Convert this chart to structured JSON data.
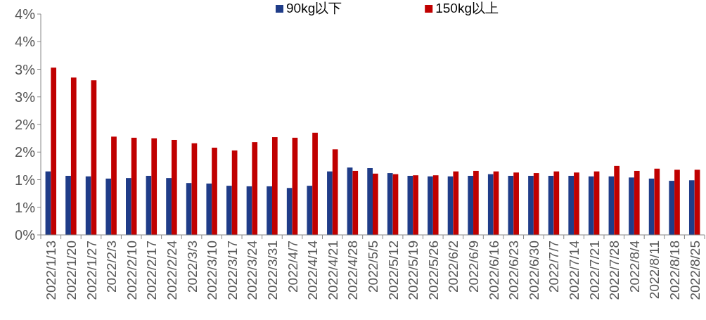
{
  "chart_data": {
    "type": "bar",
    "legend": "top",
    "grid": false,
    "categories": [
      "2022/1/13",
      "2022/1/20",
      "2022/1/27",
      "2022/2/3",
      "2022/2/10",
      "2022/2/17",
      "2022/2/24",
      "2022/3/3",
      "2022/3/10",
      "2022/3/17",
      "2022/3/24",
      "2022/3/31",
      "2022/4/7",
      "2022/4/14",
      "2022/4/21",
      "2022/4/28",
      "2022/5/5",
      "2022/5/12",
      "2022/5/19",
      "2022/5/26",
      "2022/6/2",
      "2022/6/9",
      "2022/6/16",
      "2022/6/23",
      "2022/6/30",
      "2022/7/7",
      "2022/7/14",
      "2022/7/21",
      "2022/7/28",
      "2022/8/4",
      "2022/8/11",
      "2022/8/18",
      "2022/8/25"
    ],
    "series": [
      {
        "name": "90kg以下",
        "color": "#1f3c88",
        "values": [
          1.15,
          1.07,
          1.06,
          1.02,
          1.03,
          1.07,
          1.03,
          0.94,
          0.93,
          0.89,
          0.88,
          0.88,
          0.85,
          0.89,
          1.15,
          1.22,
          1.21,
          1.12,
          1.07,
          1.06,
          1.06,
          1.07,
          1.1,
          1.07,
          1.07,
          1.07,
          1.07,
          1.06,
          1.06,
          1.04,
          1.02,
          0.98,
          0.99
        ]
      },
      {
        "name": "150kg以上",
        "color": "#c00000",
        "values": [
          3.03,
          2.85,
          2.8,
          1.78,
          1.76,
          1.75,
          1.72,
          1.66,
          1.58,
          1.53,
          1.68,
          1.77,
          1.76,
          1.85,
          1.55,
          1.16,
          1.11,
          1.1,
          1.08,
          1.08,
          1.15,
          1.16,
          1.15,
          1.13,
          1.12,
          1.15,
          1.13,
          1.15,
          1.25,
          1.16,
          1.2,
          1.18,
          1.18
        ]
      }
    ],
    "ylim": [
      0,
      4
    ],
    "yticks": [
      {
        "value": 0,
        "label": "0%"
      },
      {
        "value": 0.5,
        "label": "1%"
      },
      {
        "value": 1,
        "label": "1%"
      },
      {
        "value": 1.5,
        "label": "2%"
      },
      {
        "value": 2,
        "label": "2%"
      },
      {
        "value": 2.5,
        "label": "3%"
      },
      {
        "value": 3,
        "label": "3%"
      },
      {
        "value": 3.5,
        "label": "4%"
      },
      {
        "value": 4,
        "label": "4%"
      }
    ]
  }
}
